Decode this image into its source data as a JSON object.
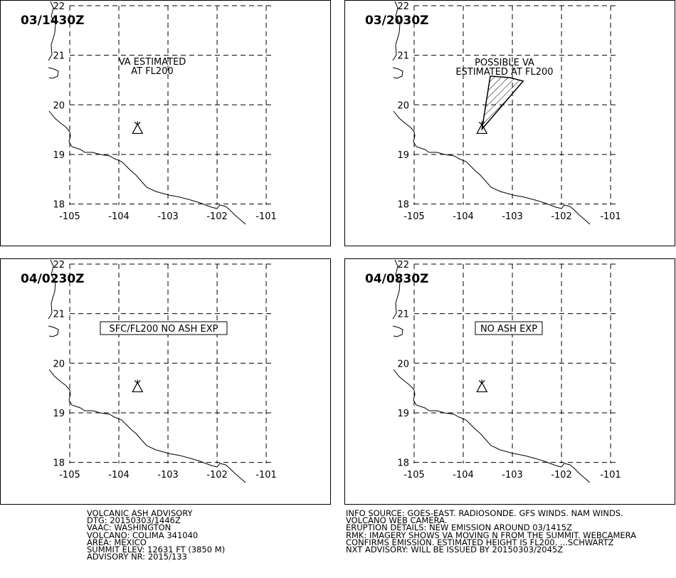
{
  "panels": [
    {
      "id": "p1",
      "time": "03/1430Z",
      "annotation": [
        "VA ESTIMATED",
        "AT FL200"
      ],
      "boxed": false,
      "has_ash_polygon": false
    },
    {
      "id": "p2",
      "time": "03/2030Z",
      "annotation": [
        "POSSIBLE VA",
        "ESTIMATED AT FL200"
      ],
      "boxed": false,
      "has_ash_polygon": true
    },
    {
      "id": "p3",
      "time": "04/0230Z",
      "annotation": [
        "SFC/FL200 NO ASH EXP"
      ],
      "boxed": true,
      "has_ash_polygon": false
    },
    {
      "id": "p4",
      "time": "04/0830Z",
      "annotation": [
        "NO ASH EXP"
      ],
      "boxed": true,
      "has_ash_polygon": false
    }
  ],
  "map": {
    "lon_ticks": [
      "-105",
      "-104",
      "-103",
      "-102",
      "-101"
    ],
    "lat_ticks": [
      "22",
      "21",
      "20",
      "19",
      "18"
    ],
    "grid": "dashed",
    "volcano_symbol": "triangle-icon",
    "volcano_lonlat": [
      -103.62,
      19.51
    ],
    "ash_polygon_lonlat": [
      [
        -103.62,
        19.51
      ],
      [
        -103.45,
        20.58
      ],
      [
        -103.05,
        20.55
      ],
      [
        -102.78,
        20.48
      ]
    ]
  },
  "left_info": [
    "VOLCANIC ASH ADVISORY",
    "DTG: 20150303/1446Z",
    "VAAC: WASHINGTON",
    "VOLCANO: COLIMA 341040",
    "AREA: MEXICO",
    "SUMMIT ELEV: 12631 FT (3850 M)",
    "ADVISORY NR: 2015/133"
  ],
  "right_info": [
    "INFO SOURCE: GOES-EAST. RADIOSONDE. GFS WINDS. NAM WINDS.",
    "VOLCANO WEB CAMERA.",
    "ERUPTION DETAILS: NEW EMISSION AROUND 03/1415Z",
    "RMK: IMAGERY SHOWS VA MOVING N FROM THE SUMMIT. WEBCAMERA",
    "CONFIRMS EMISSION. ESTIMATED HEIGHT IS FL200. ...SCHWARTZ",
    "NXT ADVISORY: WILL BE ISSUED BY 20150303/2045Z"
  ]
}
